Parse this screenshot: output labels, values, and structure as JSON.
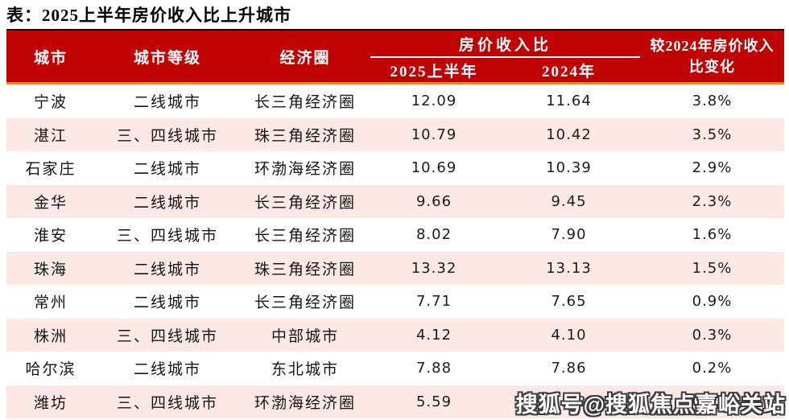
{
  "page": {
    "title": "表：2025上半年房价收入比上升城市"
  },
  "colors": {
    "header_bg": "#c00404",
    "orange_rule": "#e8822d",
    "top_rule": "#150000",
    "row_alt_pink": "#fce9e5",
    "header_text": "#ffffff"
  },
  "watermark": {
    "text": "搜狐号@搜狐焦点嘉峪关站"
  },
  "header": {
    "city": "城市",
    "tier": "城市等级",
    "circle": "经济圈",
    "group": "房价收入比",
    "sub_2025": "2025上半年",
    "sub_2024": "2024年",
    "change_line1": "较2024年房价收入",
    "change_line2": "比变化"
  },
  "rows": [
    {
      "city": "宁波",
      "tier": "二线城市",
      "circle": "长三角经济圈",
      "v2025": "12.09",
      "v2024": "11.64",
      "change": "3.8%"
    },
    {
      "city": "湛江",
      "tier": "三、四线城市",
      "circle": "珠三角经济圈",
      "v2025": "10.79",
      "v2024": "10.42",
      "change": "3.5%"
    },
    {
      "city": "石家庄",
      "tier": "二线城市",
      "circle": "环渤海经济圈",
      "v2025": "10.69",
      "v2024": "10.39",
      "change": "2.9%"
    },
    {
      "city": "金华",
      "tier": "二线城市",
      "circle": "长三角经济圈",
      "v2025": "9.66",
      "v2024": "9.45",
      "change": "2.3%"
    },
    {
      "city": "淮安",
      "tier": "三、四线城市",
      "circle": "长三角经济圈",
      "v2025": "8.02",
      "v2024": "7.90",
      "change": "1.6%"
    },
    {
      "city": "珠海",
      "tier": "二线城市",
      "circle": "珠三角经济圈",
      "v2025": "13.32",
      "v2024": "13.13",
      "change": "1.5%"
    },
    {
      "city": "常州",
      "tier": "二线城市",
      "circle": "长三角经济圈",
      "v2025": "7.71",
      "v2024": "7.65",
      "change": "0.9%"
    },
    {
      "city": "株洲",
      "tier": "三、四线城市",
      "circle": "中部城市",
      "v2025": "4.12",
      "v2024": "4.10",
      "change": "0.3%"
    },
    {
      "city": "哈尔滨",
      "tier": "二线城市",
      "circle": "东北城市",
      "v2025": "7.88",
      "v2024": "7.86",
      "change": "0.2%"
    },
    {
      "city": "潍坊",
      "tier": "三、四线城市",
      "circle": "环渤海经济圈",
      "v2025": "5.59",
      "v2024": "5.58",
      "change": "0.2%"
    }
  ],
  "chart_data": {
    "type": "table",
    "title": "2025上半年房价收入比上升城市",
    "column_group": {
      "label": "房价收入比",
      "spans": [
        "2025上半年",
        "2024年"
      ]
    },
    "columns": [
      "城市",
      "城市等级",
      "经济圈",
      "2025上半年",
      "2024年",
      "较2024年房价收入比变化"
    ],
    "rows": [
      [
        "宁波",
        "二线城市",
        "长三角经济圈",
        12.09,
        11.64,
        "3.8%"
      ],
      [
        "湛江",
        "三、四线城市",
        "珠三角经济圈",
        10.79,
        10.42,
        "3.5%"
      ],
      [
        "石家庄",
        "二线城市",
        "环渤海经济圈",
        10.69,
        10.39,
        "2.9%"
      ],
      [
        "金华",
        "二线城市",
        "长三角经济圈",
        9.66,
        9.45,
        "2.3%"
      ],
      [
        "淮安",
        "三、四线城市",
        "长三角经济圈",
        8.02,
        7.9,
        "1.6%"
      ],
      [
        "珠海",
        "二线城市",
        "珠三角经济圈",
        13.32,
        13.13,
        "1.5%"
      ],
      [
        "常州",
        "二线城市",
        "长三角经济圈",
        7.71,
        7.65,
        "0.9%"
      ],
      [
        "株洲",
        "三、四线城市",
        "中部城市",
        4.12,
        4.1,
        "0.3%"
      ],
      [
        "哈尔滨",
        "二线城市",
        "东北城市",
        7.88,
        7.86,
        "0.2%"
      ],
      [
        "潍坊",
        "三、四线城市",
        "环渤海经济圈",
        5.59,
        5.58,
        "0.2%"
      ]
    ]
  }
}
